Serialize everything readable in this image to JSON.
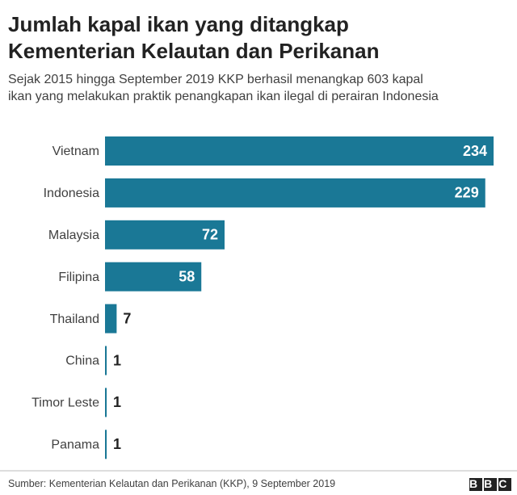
{
  "chart_data": {
    "type": "bar",
    "orientation": "horizontal",
    "title": "Jumlah kapal ikan yang ditangkap Kementerian Kelautan dan Perikanan",
    "subtitle": "Sejak 2015 hingga September 2019 KKP berhasil menangkap 603 kapal ikan yang melakukan praktik penangkapan ikan ilegal di perairan Indonesia",
    "categories": [
      "Vietnam",
      "Indonesia",
      "Malaysia",
      "Filipina",
      "Thailand",
      "China",
      "Timor Leste",
      "Panama"
    ],
    "values": [
      234,
      229,
      72,
      58,
      7,
      1,
      1,
      1
    ],
    "color": "#1a7896",
    "source": "Sumber: Kementerian Kelautan dan Perikanan (KKP), 9 September 2019",
    "logo": "BBC"
  }
}
